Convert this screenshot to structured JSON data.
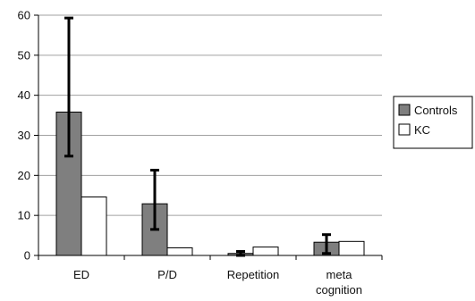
{
  "chart_data": {
    "type": "bar",
    "title": "",
    "xlabel": "",
    "ylabel": "",
    "ylim": [
      0,
      60
    ],
    "yticks": [
      0,
      10,
      20,
      30,
      40,
      50,
      60
    ],
    "grid": true,
    "legend_position": "right",
    "categories": [
      {
        "lines": [
          "ED"
        ]
      },
      {
        "lines": [
          "P/D"
        ]
      },
      {
        "lines": [
          "Repetition"
        ]
      },
      {
        "lines": [
          "meta",
          "cognition"
        ]
      }
    ],
    "series": [
      {
        "name": "Controls",
        "color": "#7f7f7f",
        "values": [
          35.8,
          12.9,
          0.5,
          3.3
        ],
        "error_low": [
          24.8,
          6.5,
          0.0,
          0.5
        ],
        "error_high": [
          59.3,
          21.3,
          1.0,
          5.2
        ]
      },
      {
        "name": "KC",
        "color": "#ffffff",
        "values": [
          14.6,
          1.9,
          2.1,
          3.5
        ]
      }
    ],
    "colors": {
      "axis": "#000000",
      "grid": "#a0a0a0",
      "error_bar": "#000000"
    }
  }
}
